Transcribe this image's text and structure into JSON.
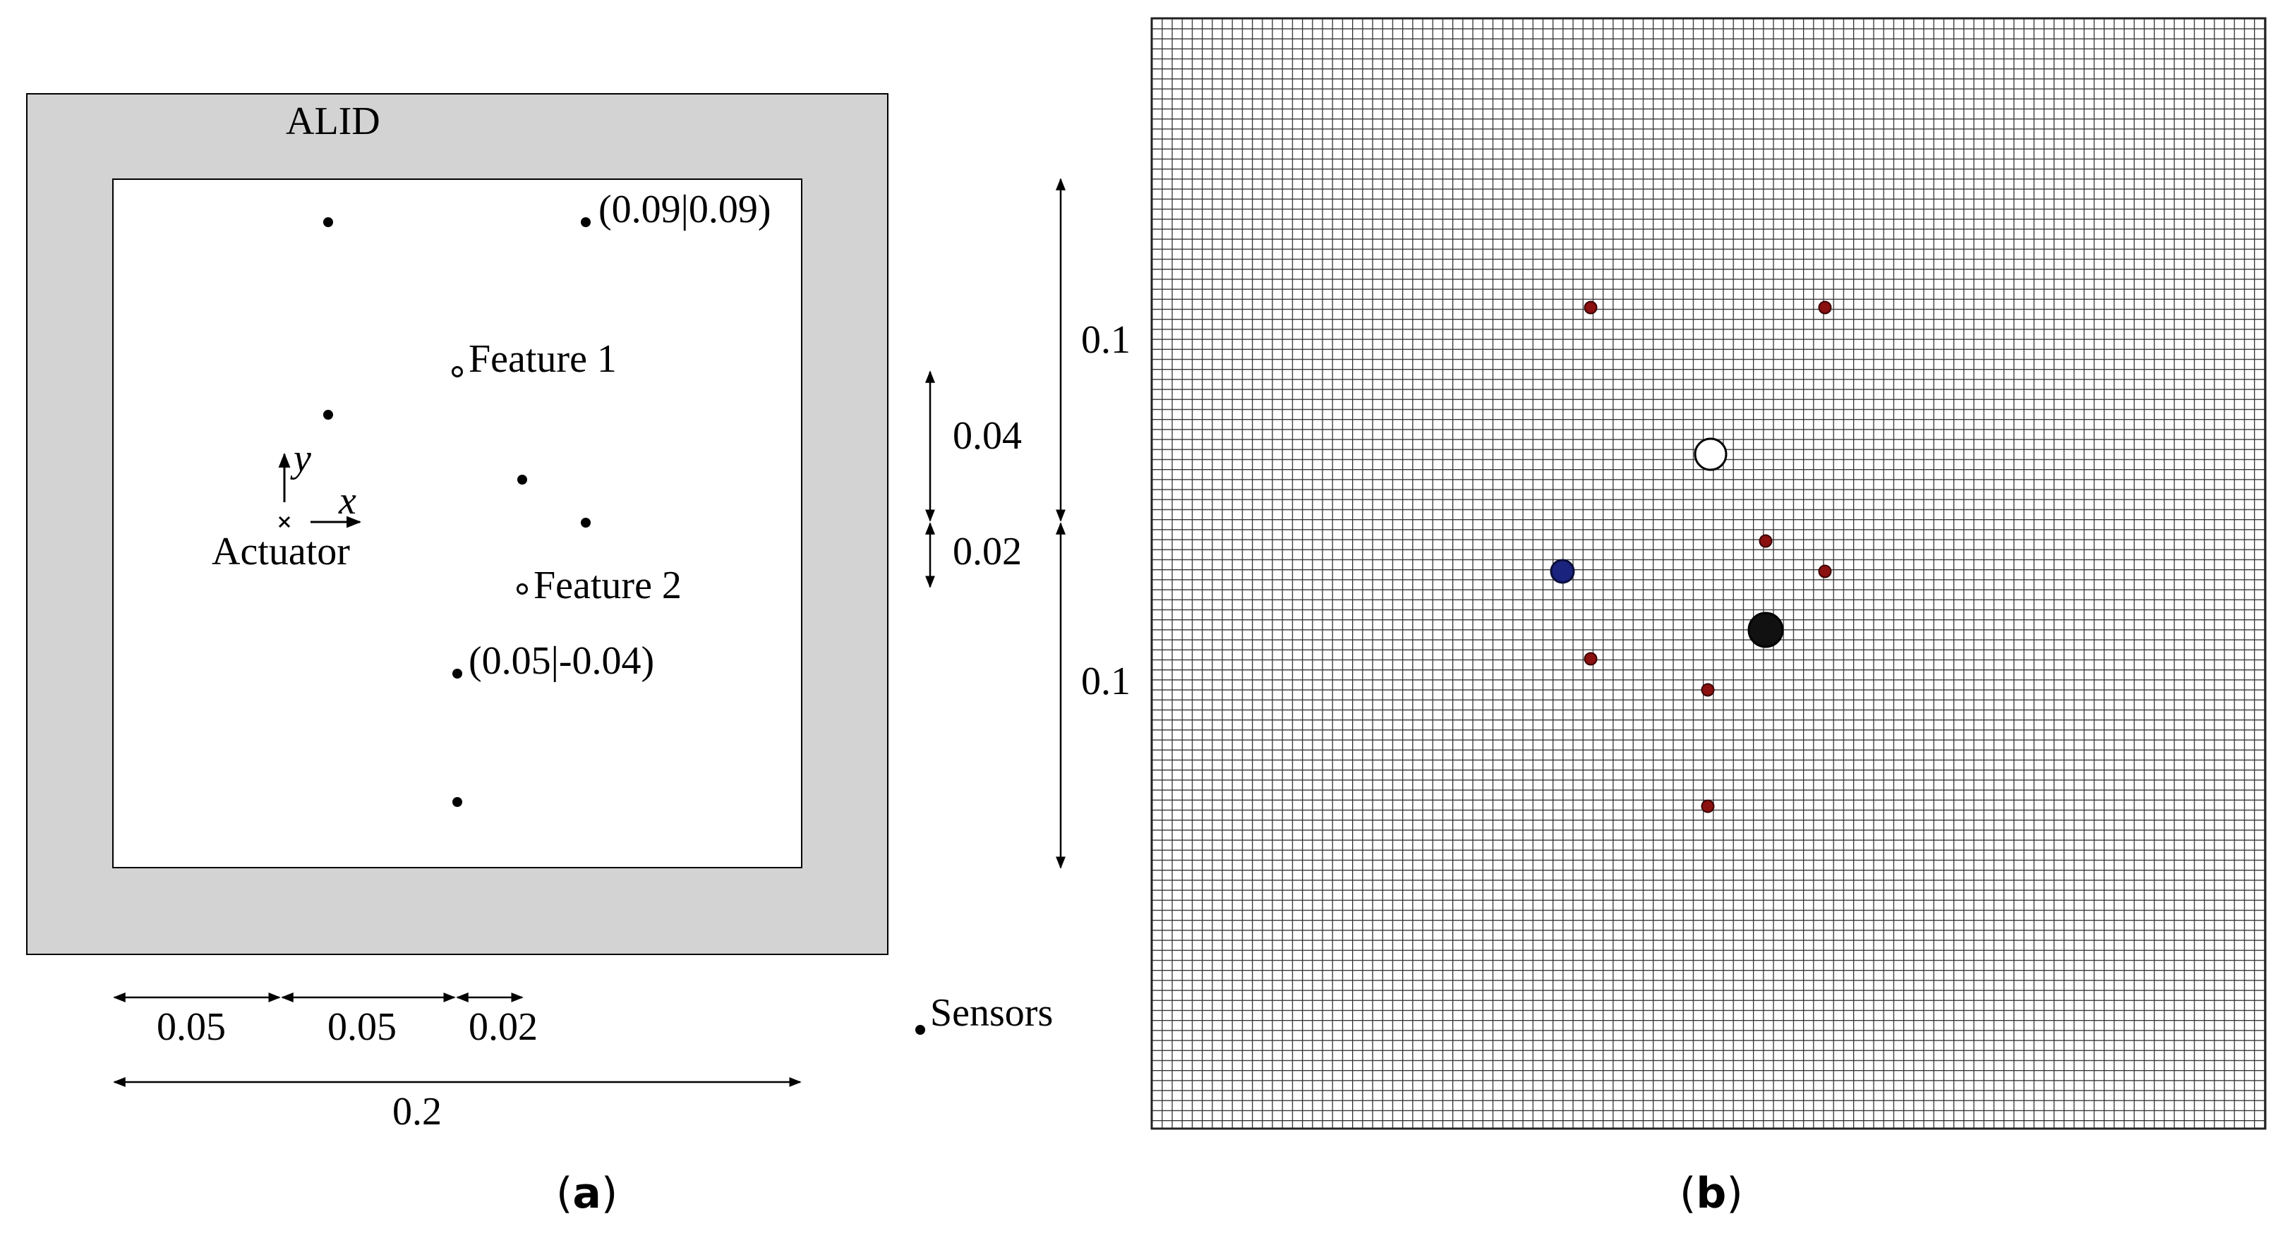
{
  "panel_a": {
    "alid_label": "ALID",
    "feature1_label": "Feature 1",
    "feature2_label": "Feature 2",
    "sensor_coord_top": "(0.09|0.09)",
    "sensor_coord_bottom": "(0.05|-0.04)",
    "actuator_label": "Actuator",
    "axis_x": "x",
    "axis_y": "y",
    "dim_bottom_1": "0.05",
    "dim_bottom_2": "0.05",
    "dim_bottom_3": "0.02",
    "dim_total": "0.2",
    "dim_right_1": "0.04",
    "dim_right_2": "0.02",
    "legend_sensors": "Sensors",
    "caption_letter": "a"
  },
  "panel_b": {
    "dim_upper": "0.1",
    "dim_lower": "0.1",
    "caption_letter": "b",
    "colors": {
      "sensor": "#8b1010",
      "actuator": "#1a237e",
      "feature_open": "#ffffff",
      "feature_solid": "#111111",
      "mesh": "#333333"
    }
  }
}
